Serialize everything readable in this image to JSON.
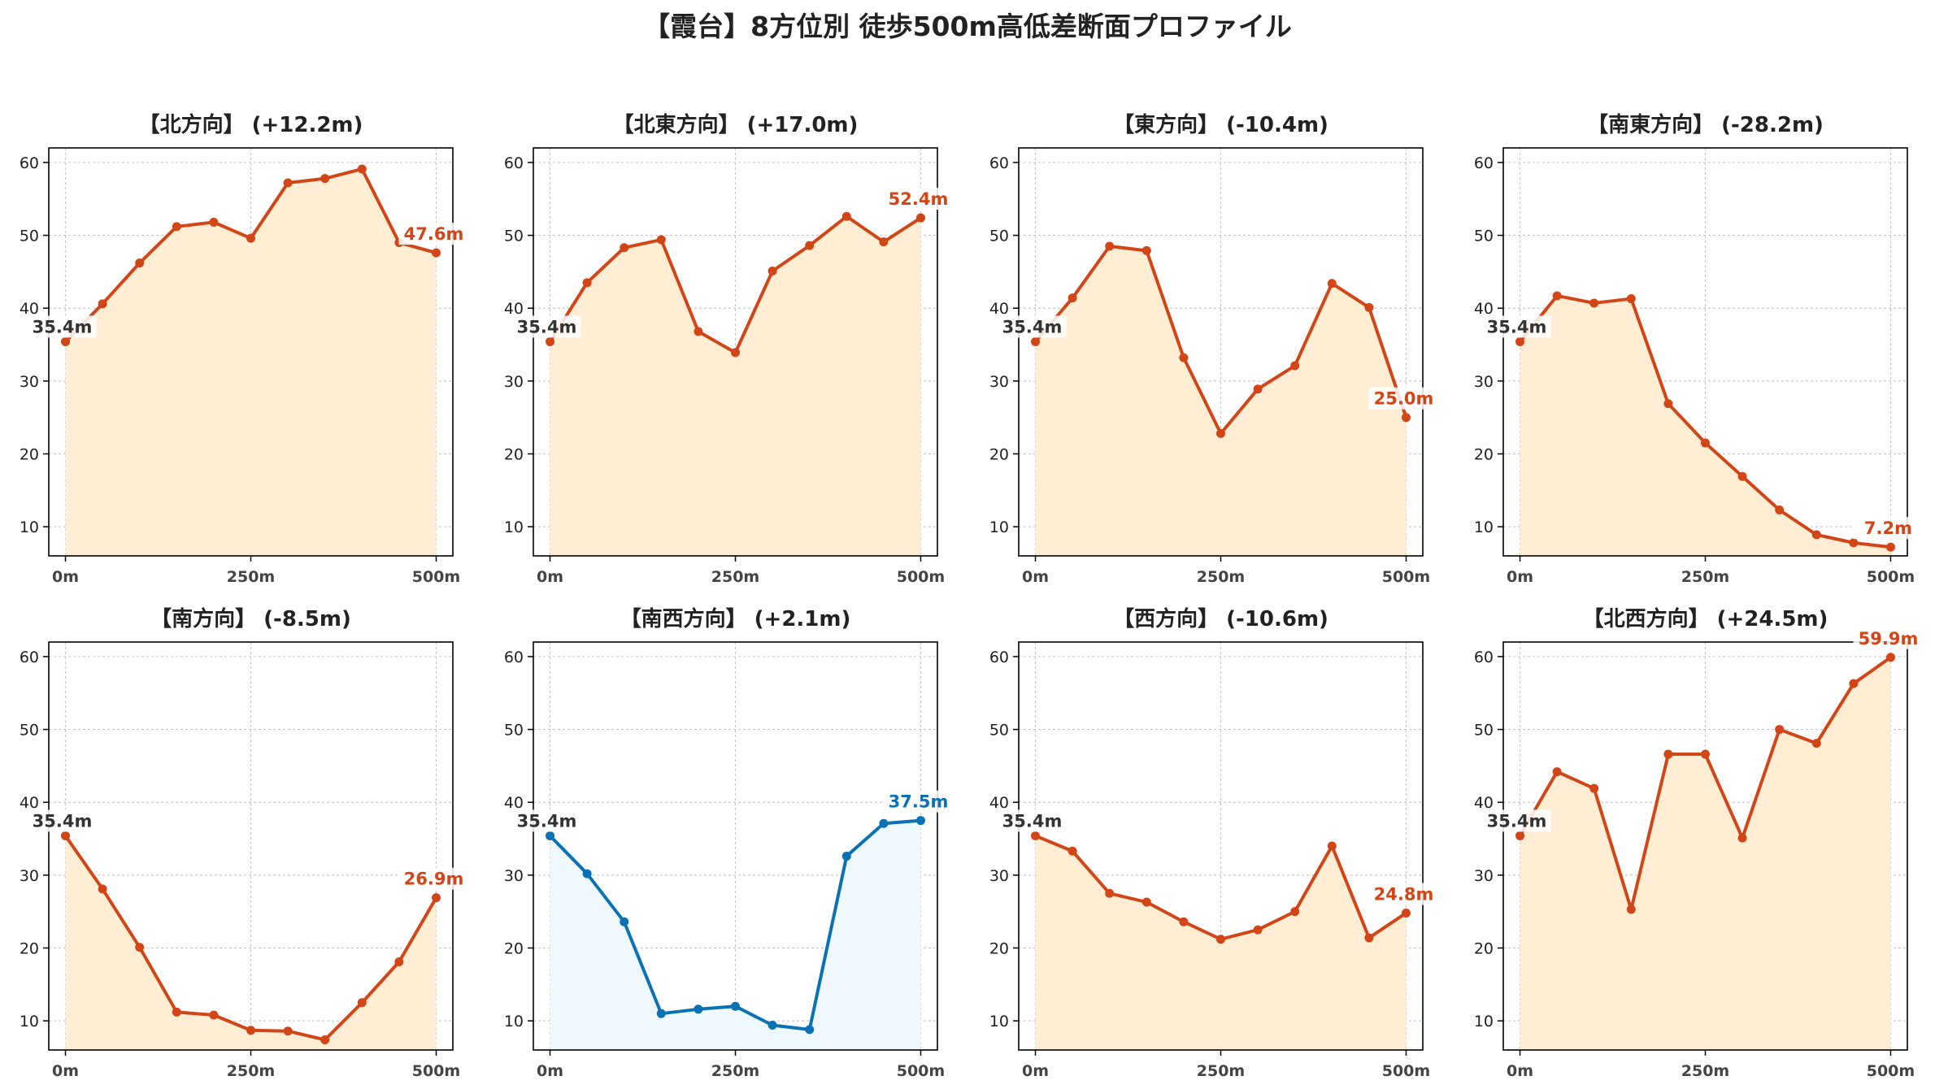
{
  "title": "【霞台】8方位別 徒歩500m高低差断面プロファイル",
  "colors": {
    "up_line": "#d24516",
    "up_fill": "#ffeed3",
    "down_line": "#0a72b4",
    "down_fill": "#eef8fd"
  },
  "chart_data": [
    {
      "type": "area",
      "title": "【北方向】 (+12.2m)",
      "x": [
        0,
        50,
        100,
        150,
        200,
        250,
        300,
        350,
        400,
        450,
        500
      ],
      "values": [
        35.4,
        40.6,
        46.2,
        51.2,
        51.8,
        49.6,
        57.2,
        57.8,
        59.1,
        49.0,
        47.6
      ],
      "start_label": "35.4m",
      "end_label": "47.6m",
      "color": "up",
      "ylim": [
        6,
        62
      ],
      "yticks": [
        10,
        20,
        30,
        40,
        50,
        60
      ],
      "xticks": [
        "0m",
        "250m",
        "500m"
      ],
      "grid": true
    },
    {
      "type": "area",
      "title": "【北東方向】 (+17.0m)",
      "x": [
        0,
        50,
        100,
        150,
        200,
        250,
        300,
        350,
        400,
        450,
        500
      ],
      "values": [
        35.4,
        43.5,
        48.3,
        49.4,
        36.8,
        33.9,
        45.1,
        48.6,
        52.6,
        49.1,
        52.4
      ],
      "start_label": "35.4m",
      "end_label": "52.4m",
      "color": "up",
      "ylim": [
        6,
        62
      ],
      "yticks": [
        10,
        20,
        30,
        40,
        50,
        60
      ],
      "xticks": [
        "0m",
        "250m",
        "500m"
      ],
      "grid": true
    },
    {
      "type": "area",
      "title": "【東方向】 (-10.4m)",
      "x": [
        0,
        50,
        100,
        150,
        200,
        250,
        300,
        350,
        400,
        450,
        500
      ],
      "values": [
        35.4,
        41.4,
        48.5,
        47.9,
        33.2,
        22.8,
        28.9,
        32.1,
        43.4,
        40.1,
        25.0
      ],
      "start_label": "35.4m",
      "end_label": "25.0m",
      "color": "up",
      "ylim": [
        6,
        62
      ],
      "yticks": [
        10,
        20,
        30,
        40,
        50,
        60
      ],
      "xticks": [
        "0m",
        "250m",
        "500m"
      ],
      "grid": true
    },
    {
      "type": "area",
      "title": "【南東方向】 (-28.2m)",
      "x": [
        0,
        50,
        100,
        150,
        200,
        250,
        300,
        350,
        400,
        450,
        500
      ],
      "values": [
        35.4,
        41.7,
        40.7,
        41.3,
        26.9,
        21.5,
        16.9,
        12.3,
        8.9,
        7.8,
        7.2
      ],
      "start_label": "35.4m",
      "end_label": "7.2m",
      "color": "up",
      "ylim": [
        6,
        62
      ],
      "yticks": [
        10,
        20,
        30,
        40,
        50,
        60
      ],
      "xticks": [
        "0m",
        "250m",
        "500m"
      ],
      "grid": true
    },
    {
      "type": "area",
      "title": "【南方向】 (-8.5m)",
      "x": [
        0,
        50,
        100,
        150,
        200,
        250,
        300,
        350,
        400,
        450,
        500
      ],
      "values": [
        35.4,
        28.1,
        20.1,
        11.2,
        10.8,
        8.7,
        8.6,
        7.4,
        12.5,
        18.1,
        26.9
      ],
      "start_label": "35.4m",
      "end_label": "26.9m",
      "color": "up",
      "ylim": [
        6,
        62
      ],
      "yticks": [
        10,
        20,
        30,
        40,
        50,
        60
      ],
      "xticks": [
        "0m",
        "250m",
        "500m"
      ],
      "grid": true
    },
    {
      "type": "area",
      "title": "【南西方向】 (+2.1m)",
      "x": [
        0,
        50,
        100,
        150,
        200,
        250,
        300,
        350,
        400,
        450,
        500
      ],
      "values": [
        35.4,
        30.2,
        23.6,
        11.0,
        11.6,
        12.0,
        9.4,
        8.8,
        32.6,
        37.1,
        37.5
      ],
      "start_label": "35.4m",
      "end_label": "37.5m",
      "color": "down",
      "ylim": [
        6,
        62
      ],
      "yticks": [
        10,
        20,
        30,
        40,
        50,
        60
      ],
      "xticks": [
        "0m",
        "250m",
        "500m"
      ],
      "grid": true
    },
    {
      "type": "area",
      "title": "【西方向】 (-10.6m)",
      "x": [
        0,
        50,
        100,
        150,
        200,
        250,
        300,
        350,
        400,
        450,
        500
      ],
      "values": [
        35.4,
        33.3,
        27.5,
        26.3,
        23.6,
        21.2,
        22.5,
        25.0,
        34.0,
        21.4,
        24.8
      ],
      "start_label": "35.4m",
      "end_label": "24.8m",
      "color": "up",
      "ylim": [
        6,
        62
      ],
      "yticks": [
        10,
        20,
        30,
        40,
        50,
        60
      ],
      "xticks": [
        "0m",
        "250m",
        "500m"
      ],
      "grid": true
    },
    {
      "type": "area",
      "title": "【北西方向】 (+24.5m)",
      "x": [
        0,
        50,
        100,
        150,
        200,
        250,
        300,
        350,
        400,
        450,
        500
      ],
      "values": [
        35.4,
        44.2,
        41.9,
        25.3,
        46.6,
        46.6,
        35.1,
        50.0,
        48.1,
        56.3,
        59.9
      ],
      "start_label": "35.4m",
      "end_label": "59.9m",
      "color": "up",
      "ylim": [
        6,
        62
      ],
      "yticks": [
        10,
        20,
        30,
        40,
        50,
        60
      ],
      "xticks": [
        "0m",
        "250m",
        "500m"
      ],
      "grid": true
    }
  ]
}
